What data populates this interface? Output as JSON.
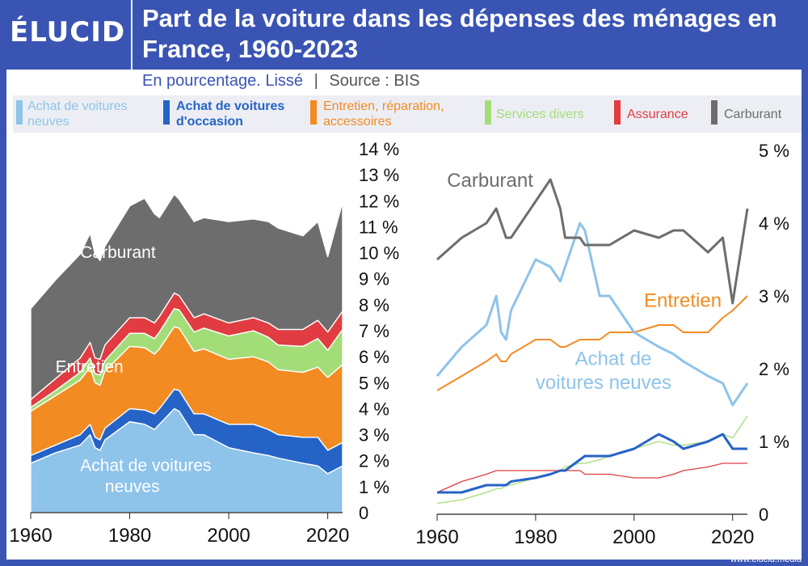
{
  "header": {
    "logo": "ÉLUCID",
    "title": "Part de la voiture dans les dépenses des ménages en France, 1960-2023",
    "subtitle_main": "En pourcentage. Lissé",
    "subtitle_sep": "|",
    "subtitle_source": "Source : BIS"
  },
  "legend": {
    "items": [
      {
        "label1": "Achat de voitures",
        "label2": "neuves",
        "color": "#8ec3ea"
      },
      {
        "label1": "Achat de voitures",
        "label2": "d'occasion",
        "color": "#2563c7"
      },
      {
        "label1": "Entretien, réparation,",
        "label2": "accessoires",
        "color": "#f28b22"
      },
      {
        "label1": "Services divers",
        "label2": "",
        "color": "#a3dd78"
      },
      {
        "label1": "Assurance",
        "label2": "",
        "color": "#e03c41"
      },
      {
        "label1": "Carburant",
        "label2": "",
        "color": "#6d6d6d"
      }
    ]
  },
  "footer": {
    "text": "www.elucid.media"
  },
  "chart_data": [
    {
      "type": "area",
      "stacked": true,
      "title": "",
      "x": [
        1960,
        1965,
        1970,
        1972,
        1973,
        1974,
        1975,
        1980,
        1983,
        1985,
        1986,
        1989,
        1990,
        1993,
        1995,
        2000,
        2005,
        2008,
        2010,
        2015,
        2018,
        2020,
        2023
      ],
      "series": [
        {
          "name": "Achat de voitures neuves",
          "color": "#8ec3ea",
          "values": [
            1.9,
            2.3,
            2.6,
            3.0,
            2.5,
            2.4,
            2.8,
            3.5,
            3.4,
            3.2,
            3.4,
            4.0,
            3.9,
            3.0,
            3.0,
            2.5,
            2.3,
            2.2,
            2.1,
            1.9,
            1.8,
            1.5,
            1.8
          ]
        },
        {
          "name": "Achat de voitures d'occasion",
          "color": "#2563c7",
          "values": [
            0.3,
            0.3,
            0.4,
            0.4,
            0.4,
            0.4,
            0.45,
            0.5,
            0.55,
            0.6,
            0.6,
            0.75,
            0.8,
            0.8,
            0.8,
            0.9,
            1.1,
            1.0,
            0.9,
            1.0,
            1.1,
            0.9,
            0.9
          ]
        },
        {
          "name": "Entretien, réparation, accessoires",
          "color": "#f28b22",
          "values": [
            1.7,
            1.9,
            2.1,
            2.2,
            2.1,
            2.1,
            2.2,
            2.4,
            2.4,
            2.3,
            2.3,
            2.4,
            2.4,
            2.4,
            2.5,
            2.5,
            2.6,
            2.6,
            2.5,
            2.5,
            2.7,
            2.8,
            3.0
          ]
        },
        {
          "name": "Services divers",
          "color": "#a3dd78",
          "values": [
            0.15,
            0.2,
            0.3,
            0.35,
            0.35,
            0.4,
            0.4,
            0.5,
            0.55,
            0.6,
            0.65,
            0.7,
            0.7,
            0.75,
            0.8,
            0.9,
            1.0,
            0.95,
            0.95,
            1.0,
            1.1,
            1.05,
            1.35
          ]
        },
        {
          "name": "Assurance",
          "color": "#e03c41",
          "values": [
            0.3,
            0.45,
            0.55,
            0.6,
            0.6,
            0.6,
            0.6,
            0.6,
            0.6,
            0.6,
            0.6,
            0.6,
            0.55,
            0.55,
            0.55,
            0.5,
            0.5,
            0.55,
            0.6,
            0.65,
            0.7,
            0.7,
            0.7
          ]
        },
        {
          "name": "Carburant",
          "color": "#6d6d6d",
          "values": [
            3.5,
            3.8,
            4.0,
            4.2,
            4.0,
            3.8,
            3.8,
            4.3,
            4.6,
            4.2,
            3.8,
            3.8,
            3.7,
            3.7,
            3.7,
            3.9,
            3.8,
            3.9,
            3.9,
            3.6,
            3.8,
            2.9,
            4.2
          ]
        }
      ],
      "xlim": [
        1960,
        2023
      ],
      "ylim": [
        0,
        14
      ],
      "y_ticks": [
        "0",
        "1 %",
        "2 %",
        "3 %",
        "4 %",
        "5 %",
        "6 %",
        "7 %",
        "8 %",
        "9 %",
        "10 %",
        "11 %",
        "12 %",
        "13 %",
        "14 %"
      ],
      "x_ticks": [
        "1960",
        "1980",
        "2000",
        "2020"
      ],
      "annotations": [
        {
          "text": "Carburant",
          "x": 1970,
          "y": 9.8
        },
        {
          "text": "Entretien",
          "x": 1965,
          "y": 5.4
        },
        {
          "text": "Achat de voitures",
          "x": 1970,
          "y": 1.6
        },
        {
          "text": "neuves",
          "x": 1975,
          "y": 0.8
        }
      ]
    },
    {
      "type": "line",
      "title": "",
      "x": [
        1960,
        1965,
        1970,
        1972,
        1973,
        1974,
        1975,
        1980,
        1983,
        1985,
        1986,
        1989,
        1990,
        1993,
        1995,
        2000,
        2005,
        2008,
        2010,
        2015,
        2018,
        2020,
        2023
      ],
      "series": [
        {
          "name": "Achat de voitures neuves",
          "color": "#8ec3ea",
          "values": [
            1.9,
            2.3,
            2.6,
            3.0,
            2.5,
            2.4,
            2.8,
            3.5,
            3.4,
            3.2,
            3.4,
            4.0,
            3.9,
            3.0,
            3.0,
            2.5,
            2.3,
            2.2,
            2.1,
            1.9,
            1.8,
            1.5,
            1.8
          ]
        },
        {
          "name": "Achat de voitures d'occasion",
          "color": "#2563c7",
          "values": [
            0.3,
            0.3,
            0.4,
            0.4,
            0.4,
            0.4,
            0.45,
            0.5,
            0.55,
            0.6,
            0.6,
            0.75,
            0.8,
            0.8,
            0.8,
            0.9,
            1.1,
            1.0,
            0.9,
            1.0,
            1.1,
            0.9,
            0.9
          ]
        },
        {
          "name": "Entretien, réparation, accessoires",
          "color": "#f28b22",
          "values": [
            1.7,
            1.9,
            2.1,
            2.2,
            2.1,
            2.1,
            2.2,
            2.4,
            2.4,
            2.3,
            2.3,
            2.4,
            2.4,
            2.4,
            2.5,
            2.5,
            2.6,
            2.6,
            2.5,
            2.5,
            2.7,
            2.8,
            3.0
          ]
        },
        {
          "name": "Services divers",
          "color": "#a3dd78",
          "values": [
            0.15,
            0.2,
            0.3,
            0.35,
            0.35,
            0.4,
            0.4,
            0.5,
            0.55,
            0.6,
            0.65,
            0.7,
            0.7,
            0.75,
            0.8,
            0.9,
            1.0,
            0.95,
            0.95,
            1.0,
            1.1,
            1.05,
            1.35
          ]
        },
        {
          "name": "Assurance",
          "color": "#e03c41",
          "values": [
            0.3,
            0.45,
            0.55,
            0.6,
            0.6,
            0.6,
            0.6,
            0.6,
            0.6,
            0.6,
            0.6,
            0.6,
            0.55,
            0.55,
            0.55,
            0.5,
            0.5,
            0.55,
            0.6,
            0.65,
            0.7,
            0.7,
            0.7
          ]
        },
        {
          "name": "Carburant",
          "color": "#6d6d6d",
          "values": [
            3.5,
            3.8,
            4.0,
            4.2,
            4.0,
            3.8,
            3.8,
            4.3,
            4.6,
            4.2,
            3.8,
            3.8,
            3.7,
            3.7,
            3.7,
            3.9,
            3.8,
            3.9,
            3.9,
            3.6,
            3.8,
            2.9,
            4.2
          ]
        }
      ],
      "xlim": [
        1960,
        2023
      ],
      "ylim": [
        0,
        5
      ],
      "y_ticks": [
        "0",
        "1 %",
        "2 %",
        "3 %",
        "4 %",
        "5 %"
      ],
      "x_ticks": [
        "1960",
        "1980",
        "2000",
        "2020"
      ],
      "annotations": [
        {
          "text": "Carburant",
          "x": 1962,
          "y": 4.5,
          "color": "#6d6d6d"
        },
        {
          "text": "Entretien",
          "x": 2002,
          "y": 2.85,
          "color": "#f28b22"
        },
        {
          "text": "Achat de",
          "x": 1988,
          "y": 2.05,
          "color": "#8ec3ea"
        },
        {
          "text": "voitures neuves",
          "x": 1980,
          "y": 1.72,
          "color": "#8ec3ea"
        }
      ]
    }
  ]
}
